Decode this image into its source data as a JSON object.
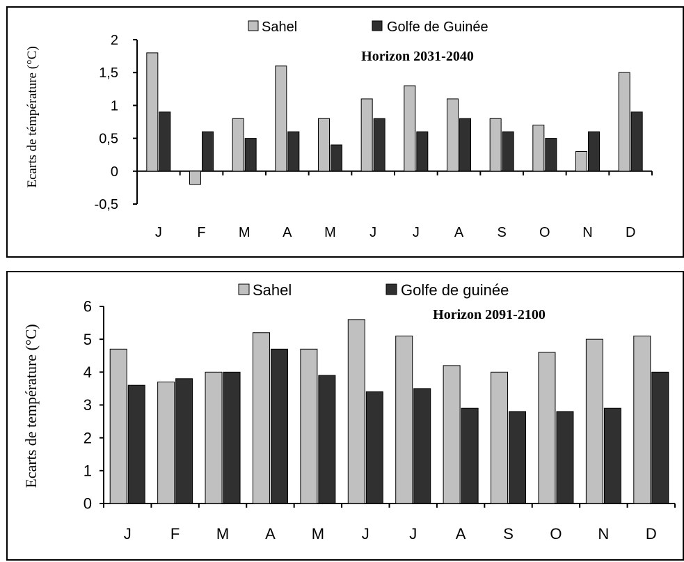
{
  "chart_data": [
    {
      "type": "bar",
      "title": "Horizon 2031-2040",
      "ylabel": "Ecarts de témpérature (°C)",
      "xlabel": "",
      "categories": [
        "J",
        "F",
        "M",
        "A",
        "M",
        "J",
        "J",
        "A",
        "S",
        "O",
        "N",
        "D"
      ],
      "series": [
        {
          "name": "Sahel",
          "color": "#c0c0c0",
          "values": [
            1.8,
            -0.2,
            0.8,
            1.6,
            0.8,
            1.1,
            1.3,
            1.1,
            0.8,
            0.7,
            0.3,
            1.5
          ]
        },
        {
          "name": "Golfe de Guinée",
          "color": "#303030",
          "values": [
            0.9,
            0.6,
            0.5,
            0.6,
            0.4,
            0.8,
            0.6,
            0.8,
            0.6,
            0.5,
            0.6,
            0.9
          ]
        }
      ],
      "ylim": [
        -0.5,
        2
      ],
      "yticks": [
        -0.5,
        0,
        0.5,
        1,
        1.5,
        2
      ],
      "ytick_labels": [
        "-0,5",
        "0",
        "0,5",
        "1",
        "1,5",
        "2"
      ],
      "grid": false,
      "legend_position": "top"
    },
    {
      "type": "bar",
      "title": "Horizon 2091-2100",
      "ylabel": "Ecarts de température (°C)",
      "xlabel": "",
      "categories": [
        "J",
        "F",
        "M",
        "A",
        "M",
        "J",
        "J",
        "A",
        "S",
        "O",
        "N",
        "D"
      ],
      "series": [
        {
          "name": "Sahel",
          "color": "#c0c0c0",
          "values": [
            4.7,
            3.7,
            4.0,
            5.2,
            4.7,
            5.6,
            5.1,
            4.2,
            4.0,
            4.6,
            5.0,
            5.1
          ]
        },
        {
          "name": "Golfe de guinée",
          "color": "#303030",
          "values": [
            3.6,
            3.8,
            4.0,
            4.7,
            3.9,
            3.4,
            3.5,
            2.9,
            2.8,
            2.8,
            2.9,
            4.0
          ]
        }
      ],
      "ylim": [
        0,
        6
      ],
      "yticks": [
        0,
        1,
        2,
        3,
        4,
        5,
        6
      ],
      "ytick_labels": [
        "0",
        "1",
        "2",
        "3",
        "4",
        "5",
        "6"
      ],
      "grid": false,
      "legend_position": "top"
    }
  ]
}
